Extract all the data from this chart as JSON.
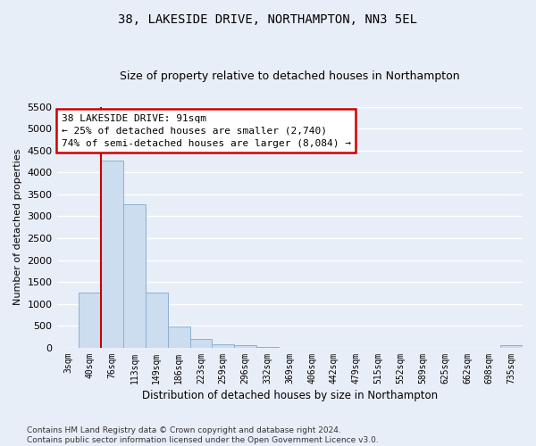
{
  "title": "38, LAKESIDE DRIVE, NORTHAMPTON, NN3 5EL",
  "subtitle": "Size of property relative to detached houses in Northampton",
  "xlabel": "Distribution of detached houses by size in Northampton",
  "ylabel": "Number of detached properties",
  "categories": [
    "3sqm",
    "40sqm",
    "76sqm",
    "113sqm",
    "149sqm",
    "186sqm",
    "223sqm",
    "259sqm",
    "296sqm",
    "332sqm",
    "369sqm",
    "406sqm",
    "442sqm",
    "479sqm",
    "515sqm",
    "552sqm",
    "589sqm",
    "625sqm",
    "662sqm",
    "698sqm",
    "735sqm"
  ],
  "values": [
    0,
    1250,
    4280,
    3280,
    1270,
    480,
    200,
    85,
    55,
    20,
    0,
    0,
    0,
    0,
    0,
    0,
    0,
    0,
    0,
    0,
    55
  ],
  "bar_color": "#ccddf0",
  "bar_edge_color": "#8ab0d0",
  "vline_color": "#cc0000",
  "vline_x_index": 2,
  "annotation_line1": "38 LAKESIDE DRIVE: 91sqm",
  "annotation_line2": "← 25% of detached houses are smaller (2,740)",
  "annotation_line3": "74% of semi-detached houses are larger (8,084) →",
  "annotation_box_facecolor": "#ffffff",
  "annotation_box_edgecolor": "#cc0000",
  "ylim": [
    0,
    5500
  ],
  "yticks": [
    0,
    500,
    1000,
    1500,
    2000,
    2500,
    3000,
    3500,
    4000,
    4500,
    5000,
    5500
  ],
  "footer_line1": "Contains HM Land Registry data © Crown copyright and database right 2024.",
  "footer_line2": "Contains public sector information licensed under the Open Government Licence v3.0.",
  "bg_color": "#e8eef8",
  "plot_bg_color": "#e8eef8",
  "grid_color": "#ffffff",
  "title_fontsize": 10,
  "subtitle_fontsize": 9,
  "ylabel_fontsize": 8,
  "xlabel_fontsize": 8.5,
  "ytick_fontsize": 8,
  "xtick_fontsize": 7,
  "annotation_fontsize": 8,
  "footer_fontsize": 6.5
}
